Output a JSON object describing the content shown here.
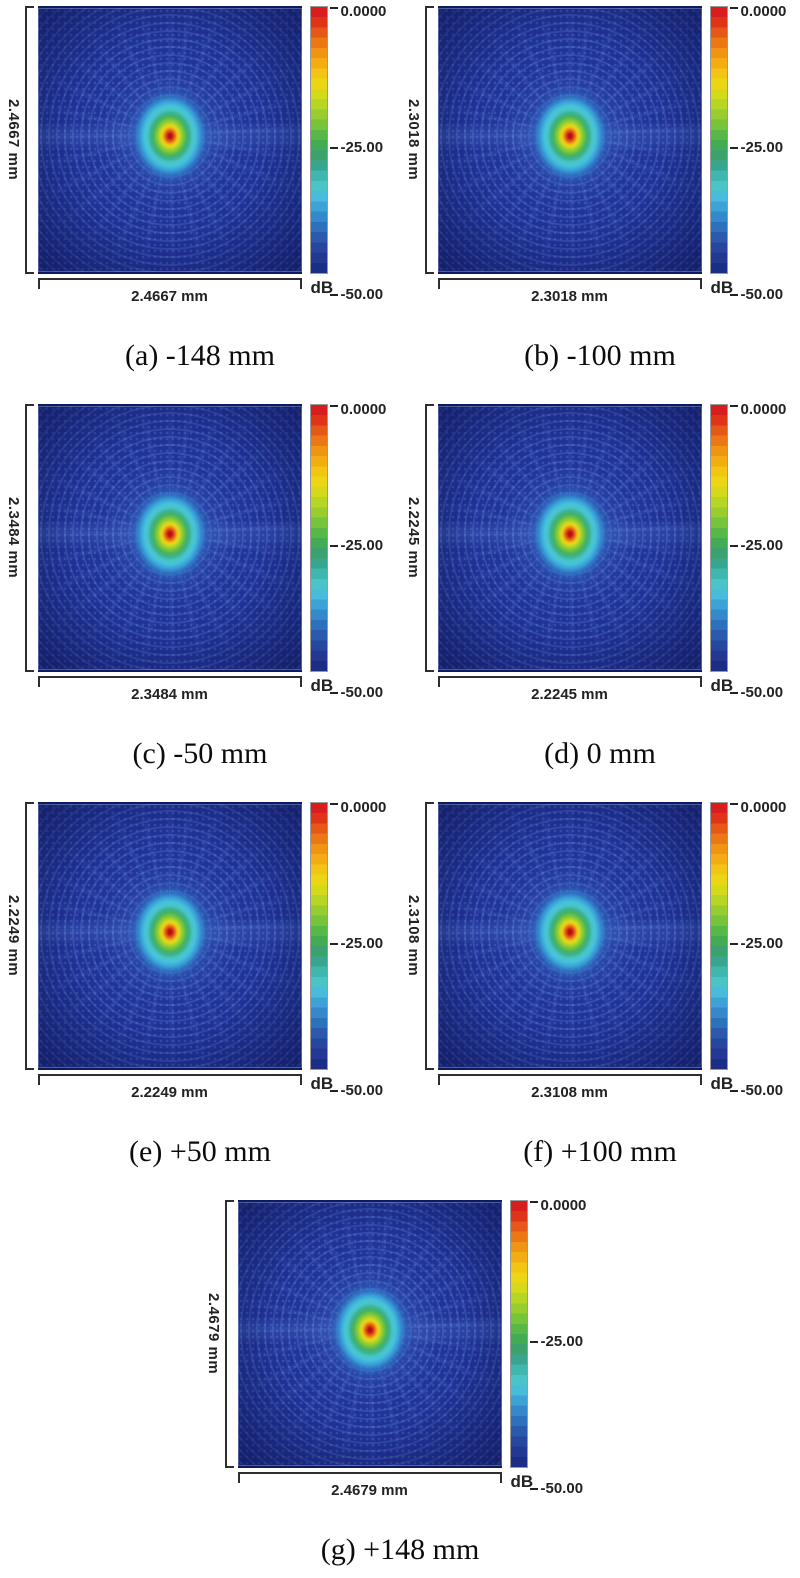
{
  "figure": {
    "description": "Simulated point-spread-function intensity maps (dB scale) at seven defocus positions",
    "panels": [
      {
        "id": "a",
        "caption": "(a) -148 mm",
        "defocus": "-148 mm",
        "width_label": "2.4667 mm",
        "height_label": "2.4667 mm"
      },
      {
        "id": "b",
        "caption": "(b) -100 mm",
        "defocus": "-100 mm",
        "width_label": "2.3018 mm",
        "height_label": "2.3018 mm"
      },
      {
        "id": "c",
        "caption": "(c) -50 mm",
        "defocus": "-50 mm",
        "width_label": "2.3484 mm",
        "height_label": "2.3484 mm"
      },
      {
        "id": "d",
        "caption": "(d) 0 mm",
        "defocus": "0 mm",
        "width_label": "2.2245 mm",
        "height_label": "2.2245 mm"
      },
      {
        "id": "e",
        "caption": "(e) +50 mm",
        "defocus": "+50 mm",
        "width_label": "2.2249 mm",
        "height_label": "2.2249 mm"
      },
      {
        "id": "f",
        "caption": "(f) +100 mm",
        "defocus": "+100 mm",
        "width_label": "2.3108 mm",
        "height_label": "2.3108 mm"
      },
      {
        "id": "g",
        "caption": "(g) +148 mm",
        "defocus": "+148 mm",
        "width_label": "2.4679 mm",
        "height_label": "2.4679 mm"
      }
    ],
    "colorbar": {
      "tick_labels": [
        "0.0000",
        "-25.00",
        "-50.00"
      ],
      "unit": "dB",
      "colors": [
        "#d81e1c",
        "#e03418",
        "#e75717",
        "#ed7715",
        "#f19313",
        "#f3ad12",
        "#f2c512",
        "#ead614",
        "#d4da1a",
        "#b6d623",
        "#97cd2d",
        "#76c43a",
        "#57b747",
        "#44ab55",
        "#3ba26d",
        "#38a68f",
        "#40b6ae",
        "#4bc4c8",
        "#49bcd9",
        "#3da3d6",
        "#3489ca",
        "#2d70bc",
        "#2a59ae",
        "#27479f",
        "#223892",
        "#1c2d85"
      ]
    },
    "colors": {
      "map_background": "#203195",
      "hotspot_core": "#b51218",
      "bracket": "#2e2e2e",
      "label_text": "#222222"
    }
  },
  "chart_data": [
    {
      "type": "heatmap",
      "title": "(a) -148 mm",
      "defocus_mm": -148,
      "x_extent_mm": 2.4667,
      "y_extent_mm": 2.4667,
      "value_unit": "dB",
      "value_range": [
        -50,
        0
      ],
      "colorbar_ticks": [
        0.0,
        -25.0,
        -50.0
      ],
      "peak_value_dB": 0,
      "peak_location": "center",
      "pattern": "airy-like PSF: red core, concentric rings, radial sidelobe spokes on dark blue field"
    },
    {
      "type": "heatmap",
      "title": "(b) -100 mm",
      "defocus_mm": -100,
      "x_extent_mm": 2.3018,
      "y_extent_mm": 2.3018,
      "value_unit": "dB",
      "value_range": [
        -50,
        0
      ],
      "colorbar_ticks": [
        0.0,
        -25.0,
        -50.0
      ],
      "peak_value_dB": 0,
      "peak_location": "center",
      "pattern": "airy-like PSF: red core, concentric rings, radial sidelobe spokes on dark blue field"
    },
    {
      "type": "heatmap",
      "title": "(c) -50 mm",
      "defocus_mm": -50,
      "x_extent_mm": 2.3484,
      "y_extent_mm": 2.3484,
      "value_unit": "dB",
      "value_range": [
        -50,
        0
      ],
      "colorbar_ticks": [
        0.0,
        -25.0,
        -50.0
      ],
      "peak_value_dB": 0,
      "peak_location": "center",
      "pattern": "airy-like PSF: red core, concentric rings, radial sidelobe spokes on dark blue field"
    },
    {
      "type": "heatmap",
      "title": "(d) 0 mm",
      "defocus_mm": 0,
      "x_extent_mm": 2.2245,
      "y_extent_mm": 2.2245,
      "value_unit": "dB",
      "value_range": [
        -50,
        0
      ],
      "colorbar_ticks": [
        0.0,
        -25.0,
        -50.0
      ],
      "peak_value_dB": 0,
      "peak_location": "center",
      "pattern": "airy-like PSF: red core, concentric rings, radial sidelobe spokes on dark blue field"
    },
    {
      "type": "heatmap",
      "title": "(e) +50 mm",
      "defocus_mm": 50,
      "x_extent_mm": 2.2249,
      "y_extent_mm": 2.2249,
      "value_unit": "dB",
      "value_range": [
        -50,
        0
      ],
      "colorbar_ticks": [
        0.0,
        -25.0,
        -50.0
      ],
      "peak_value_dB": 0,
      "peak_location": "center",
      "pattern": "airy-like PSF: red core, concentric rings, radial sidelobe spokes on dark blue field"
    },
    {
      "type": "heatmap",
      "title": "(f) +100 mm",
      "defocus_mm": 100,
      "x_extent_mm": 2.3108,
      "y_extent_mm": 2.3108,
      "value_unit": "dB",
      "value_range": [
        -50,
        0
      ],
      "colorbar_ticks": [
        0.0,
        -25.0,
        -50.0
      ],
      "peak_value_dB": 0,
      "peak_location": "center",
      "pattern": "airy-like PSF: red core, concentric rings, radial sidelobe spokes on dark blue field"
    },
    {
      "type": "heatmap",
      "title": "(g) +148 mm",
      "defocus_mm": 148,
      "x_extent_mm": 2.4679,
      "y_extent_mm": 2.4679,
      "value_unit": "dB",
      "value_range": [
        -50,
        0
      ],
      "colorbar_ticks": [
        0.0,
        -25.0,
        -50.0
      ],
      "peak_value_dB": 0,
      "peak_location": "center",
      "pattern": "airy-like PSF: red core, concentric rings, radial sidelobe spokes on dark blue field"
    }
  ]
}
